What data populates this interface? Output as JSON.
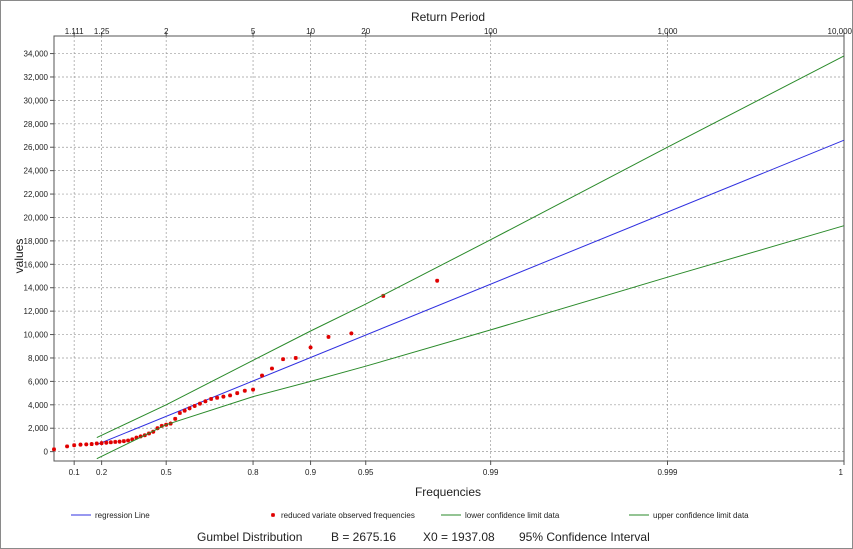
{
  "chart_data": {
    "type": "scatter",
    "title": "",
    "xlabel": "Frequencies",
    "ylabel": "values",
    "x2label": "Return Period",
    "x_scale": "gumbel-reduced-variate",
    "ylim": [
      -800,
      35500
    ],
    "y_ticks": [
      0,
      2000,
      4000,
      6000,
      8000,
      10000,
      12000,
      14000,
      16000,
      18000,
      20000,
      22000,
      24000,
      26000,
      28000,
      30000,
      32000,
      34000
    ],
    "y_tick_labels": [
      "0",
      "2,000",
      "4,000",
      "6,000",
      "8,000",
      "10,000",
      "12,000",
      "14,000",
      "16,000",
      "18,000",
      "20,000",
      "22,000",
      "24,000",
      "26,000",
      "28,000",
      "30,000",
      "32,000",
      "34,000"
    ],
    "x_ticks": [
      {
        "p": 0.1,
        "label": "0.1"
      },
      {
        "p": 0.2,
        "label": "0.2"
      },
      {
        "p": 0.5,
        "label": "0.5"
      },
      {
        "p": 0.8,
        "label": "0.8"
      },
      {
        "p": 0.9,
        "label": "0.9"
      },
      {
        "p": 0.95,
        "label": "0.95"
      },
      {
        "p": 0.99,
        "label": "0.99"
      },
      {
        "p": 0.999,
        "label": "0.999"
      },
      {
        "p": 0.9999,
        "label": "1"
      }
    ],
    "x2_ticks": [
      {
        "T": 1.111,
        "label": "1.111"
      },
      {
        "T": 1.25,
        "label": "1.25"
      },
      {
        "T": 2,
        "label": "2"
      },
      {
        "T": 5,
        "label": "5"
      },
      {
        "T": 10,
        "label": "10"
      },
      {
        "T": 20,
        "label": "20"
      },
      {
        "T": 100,
        "label": "100"
      },
      {
        "T": 1000,
        "label": "1,000"
      },
      {
        "T": 10000,
        "label": "10,000"
      }
    ],
    "grid": true,
    "legend_position": "bottom",
    "series": [
      {
        "name": "regression Line",
        "kind": "line",
        "color": "#3030e0",
        "points": [
          [
            0.18,
            600
          ],
          [
            0.9999,
            26600
          ]
        ]
      },
      {
        "name": "reduced variate observed frequencies",
        "kind": "scatter",
        "color": "#e00000",
        "points": [
          [
            0.05,
            200
          ],
          [
            0.08,
            450
          ],
          [
            0.1,
            550
          ],
          [
            0.12,
            600
          ],
          [
            0.14,
            620
          ],
          [
            0.16,
            650
          ],
          [
            0.18,
            700
          ],
          [
            0.2,
            730
          ],
          [
            0.22,
            760
          ],
          [
            0.24,
            800
          ],
          [
            0.26,
            830
          ],
          [
            0.28,
            860
          ],
          [
            0.3,
            900
          ],
          [
            0.32,
            950
          ],
          [
            0.34,
            1050
          ],
          [
            0.36,
            1200
          ],
          [
            0.38,
            1300
          ],
          [
            0.4,
            1400
          ],
          [
            0.42,
            1550
          ],
          [
            0.44,
            1700
          ],
          [
            0.46,
            2000
          ],
          [
            0.48,
            2200
          ],
          [
            0.5,
            2300
          ],
          [
            0.52,
            2400
          ],
          [
            0.54,
            2800
          ],
          [
            0.56,
            3300
          ],
          [
            0.58,
            3500
          ],
          [
            0.6,
            3700
          ],
          [
            0.62,
            3900
          ],
          [
            0.64,
            4100
          ],
          [
            0.66,
            4300
          ],
          [
            0.68,
            4500
          ],
          [
            0.7,
            4600
          ],
          [
            0.72,
            4700
          ],
          [
            0.74,
            4800
          ],
          [
            0.76,
            5000
          ],
          [
            0.78,
            5200
          ],
          [
            0.8,
            5300
          ],
          [
            0.82,
            6500
          ],
          [
            0.84,
            7100
          ],
          [
            0.86,
            7900
          ],
          [
            0.88,
            8000
          ],
          [
            0.9,
            8900
          ],
          [
            0.92,
            9800
          ],
          [
            0.94,
            10100
          ],
          [
            0.96,
            13300
          ],
          [
            0.98,
            14600
          ]
        ]
      },
      {
        "name": "lower confidence limit data",
        "kind": "line",
        "color": "#2a8a2a",
        "points": [
          [
            0.18,
            -600
          ],
          [
            0.5,
            2300
          ],
          [
            0.8,
            4700
          ],
          [
            0.9,
            6000
          ],
          [
            0.95,
            7300
          ],
          [
            0.99,
            10400
          ],
          [
            0.999,
            14900
          ],
          [
            0.9999,
            19300
          ]
        ]
      },
      {
        "name": "upper confidence limit data",
        "kind": "line",
        "color": "#2a8a2a",
        "points": [
          [
            0.18,
            1200
          ],
          [
            0.5,
            4000
          ],
          [
            0.8,
            7800
          ],
          [
            0.9,
            10300
          ],
          [
            0.95,
            12600
          ],
          [
            0.99,
            18100
          ],
          [
            0.999,
            26000
          ],
          [
            0.9999,
            33800
          ]
        ]
      }
    ]
  },
  "footer": {
    "distribution": "Gumbel Distribution",
    "b_param": "B = 2675.16",
    "x0_param": "X0 = 1937.08",
    "confidence": "95% Confidence Interval"
  }
}
